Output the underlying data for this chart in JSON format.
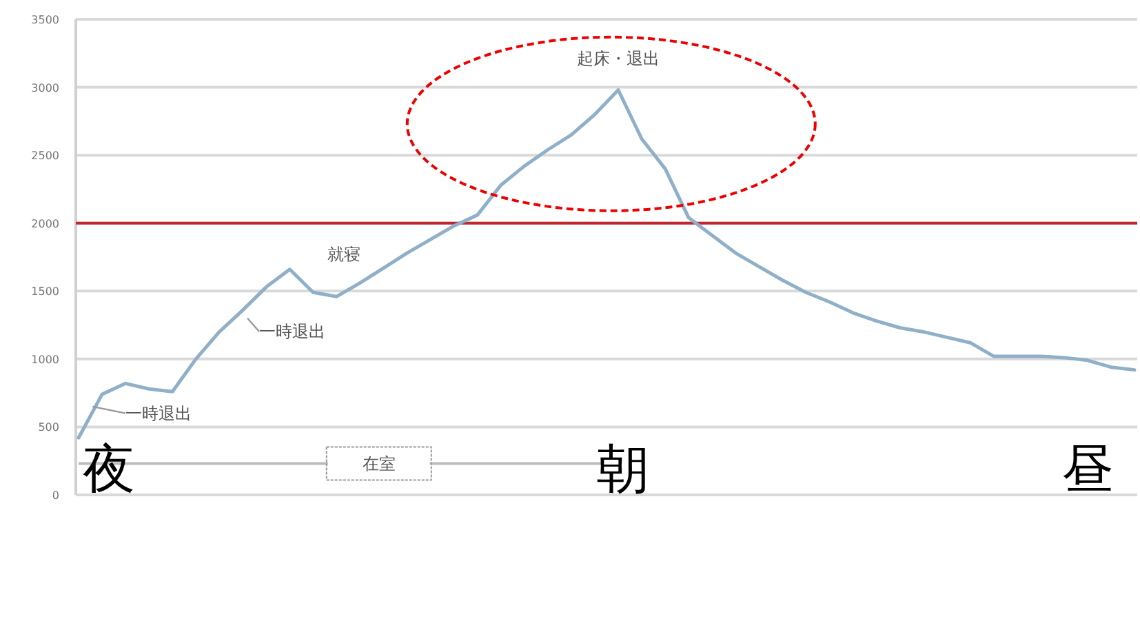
{
  "chart_data": {
    "type": "line",
    "categories": [
      null,
      null,
      null,
      null,
      null,
      null,
      null,
      null,
      null,
      null,
      null,
      null,
      null,
      null,
      null,
      null,
      null,
      null,
      null,
      null,
      null,
      null,
      null,
      null,
      null,
      null,
      null,
      null,
      null,
      null,
      null,
      null,
      null,
      null,
      null,
      null,
      null,
      null,
      null,
      null,
      null,
      null,
      null,
      null,
      null,
      null
    ],
    "values": [
      420,
      740,
      820,
      780,
      760,
      1000,
      1200,
      1360,
      1530,
      1660,
      1490,
      1460,
      1560,
      1670,
      1780,
      1880,
      1980,
      2060,
      2280,
      2420,
      2540,
      2650,
      2800,
      2980,
      2620,
      2400,
      2040,
      1910,
      1780,
      1680,
      1580,
      1490,
      1420,
      1340,
      1280,
      1230,
      1200,
      1160,
      1120,
      1020,
      1020,
      1020,
      1010,
      990,
      940,
      920
    ],
    "color": "#8fb0c8",
    "ylim": [
      0,
      3500
    ],
    "yticks": [
      0,
      500,
      1000,
      1500,
      2000,
      2500,
      3000,
      3500
    ],
    "grid": "y",
    "tick_labels": "y",
    "ref_lines": [
      {
        "axis": "y",
        "value": 2000,
        "color": "#c0262d"
      }
    ],
    "annotations": [
      "一時退出",
      "一時退出",
      "就寝",
      "起床・退出",
      "在室",
      "夜",
      "朝",
      "昼"
    ]
  }
}
